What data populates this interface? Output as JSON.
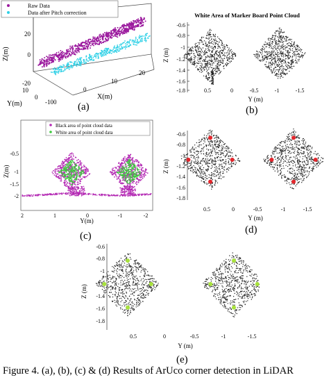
{
  "figure": {
    "caption": "Figure 4.    (a), (b), (c) & (d) Results of ArUco corner detection in LiDAR"
  },
  "colors": {
    "raw": "#9b1a9e",
    "pitch": "#2fd0e6",
    "black_area": "#b42bb4",
    "white_area": "#3fc93f",
    "point": "#222222",
    "corner_red": "#e3262c",
    "corner_green": "#a8e23c"
  },
  "panels": {
    "a": {
      "letter": "(a)",
      "legend": [
        "Raw Data",
        "Data after Pitch correction"
      ],
      "zlabel": "Z(m)",
      "ylabel": "Y(m)",
      "xlabel": "X(m)",
      "zticks": [
        "20",
        "0",
        "-20"
      ],
      "yticks": [
        "10",
        "0"
      ],
      "xticks": [
        "-100",
        "0",
        "10",
        "20"
      ]
    },
    "b": {
      "letter": "(b)",
      "title": "White Area of Marker Board Point Cloud",
      "ylabel": "Z (m)",
      "xlabel": "Y (m)",
      "yticks": [
        "-0.6",
        "-0.8",
        "-1",
        "-1.2",
        "-1.4",
        "-1.6",
        "-1.8"
      ],
      "xticks": [
        "0.5",
        "0",
        "-0.5",
        "-1",
        "-1.5"
      ]
    },
    "c": {
      "letter": "(c)",
      "legend": [
        "Black area of point cloud data",
        "White area of point cloud data"
      ],
      "ylabel": "Z(m)",
      "xlabel": "Y(m)",
      "yticks": [
        "-0.5",
        "-1",
        "-1.5",
        "-2"
      ],
      "xticks": [
        "2",
        "1",
        "0",
        "-1",
        "-2"
      ]
    },
    "d": {
      "letter": "(d)",
      "ylabel": "Z (m)",
      "xlabel": "Y (m)",
      "yticks": [
        "-0.6",
        "-0.8",
        "-1",
        "-1.2",
        "-1.4",
        "-1.6",
        "-1.8"
      ],
      "xticks": [
        "0.5",
        "0",
        "-0.5",
        "-1",
        "-1.5"
      ]
    },
    "e": {
      "letter": "(e)",
      "ylabel": "Z (m)",
      "xlabel": "Y (m)",
      "yticks": [
        "-0.6",
        "-0.8",
        "-1",
        "-1.2",
        "-1.4",
        "-1.6",
        "-1.8"
      ],
      "xticks": [
        "0.5",
        "0",
        "-0.5",
        "-1",
        "-1.5"
      ]
    }
  }
}
